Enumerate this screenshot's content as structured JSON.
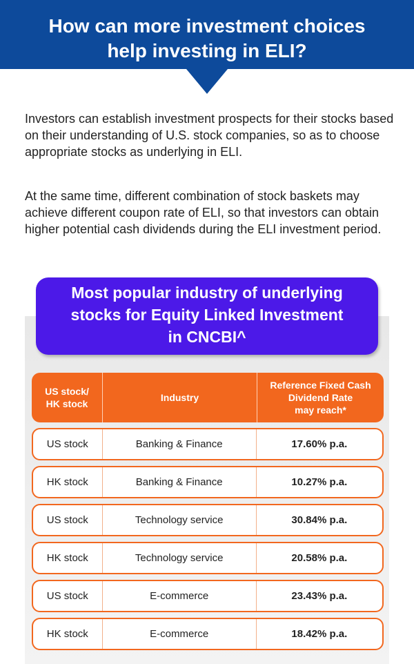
{
  "header": {
    "title_line1": "How can more investment choices",
    "title_line2": "help investing in ELI?"
  },
  "intro": {
    "paragraph1": "Investors can establish investment prospects for their stocks based on their understanding of U.S. stock companies, so as to choose appropriate stocks as underlying in ELI.",
    "paragraph2": "At the same time, different combination of stock baskets may achieve different coupon rate of ELI, so that investors can obtain higher potential cash dividends during the ELI investment period."
  },
  "table_title": {
    "line1": "Most popular industry of underlying",
    "line2": "stocks for Equity Linked Investment",
    "line3": "in CNCBI^"
  },
  "table": {
    "headers": {
      "market_line1": "US stock/",
      "market_line2": "HK stock",
      "industry": "Industry",
      "rate_line1": "Reference Fixed Cash",
      "rate_line2": "Dividend Rate",
      "rate_line3": "may reach*"
    },
    "rows": [
      {
        "market": "US stock",
        "industry": "Banking & Finance",
        "rate": "17.60% p.a."
      },
      {
        "market": "HK stock",
        "industry": "Banking & Finance",
        "rate": "10.27% p.a."
      },
      {
        "market": "US stock",
        "industry": "Technology service",
        "rate": "30.84% p.a."
      },
      {
        "market": "HK stock",
        "industry": "Technology service",
        "rate": "20.58% p.a."
      },
      {
        "market": "US stock",
        "industry": "E-commerce",
        "rate": "23.43% p.a."
      },
      {
        "market": "HK stock",
        "industry": "E-commerce",
        "rate": "18.42% p.a."
      }
    ]
  },
  "colors": {
    "banner": "#0d4a9b",
    "title_box": "#4c19e8",
    "accent_orange": "#f2671e"
  }
}
